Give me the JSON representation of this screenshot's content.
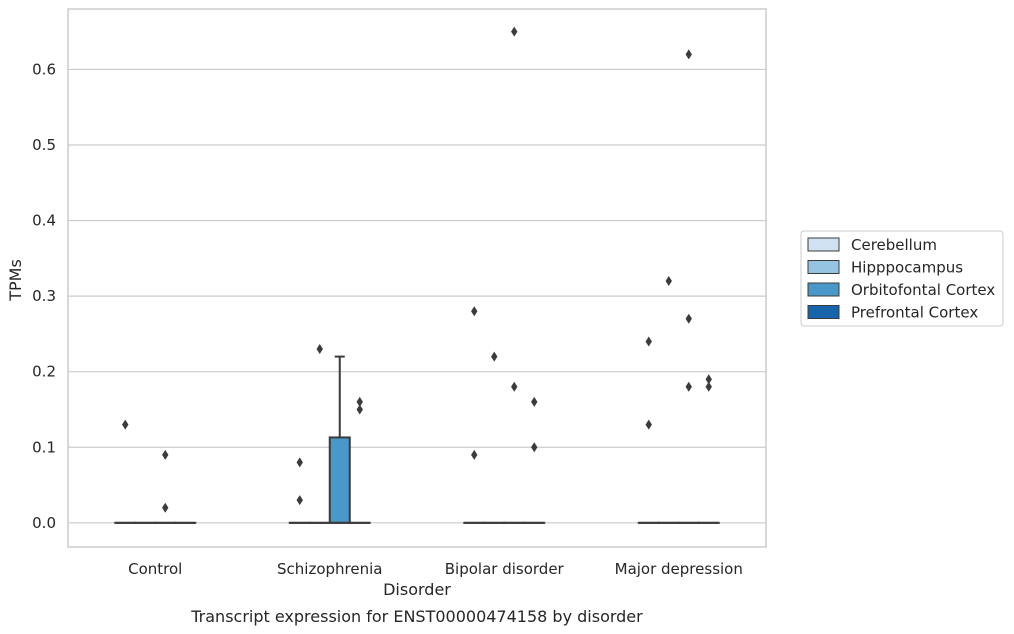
{
  "chart_data": {
    "type": "box",
    "caption": "Transcript expression for ENST00000474158 by disorder",
    "xlabel": "Disorder",
    "ylabel": "TPMs",
    "categories": [
      "Control",
      "Schizophrenia",
      "Bipolar disorder",
      "Major depression"
    ],
    "ylim": [
      -0.032,
      0.68
    ],
    "yticks": [
      0.0,
      0.1,
      0.2,
      0.3,
      0.4,
      0.5,
      0.6
    ],
    "ytick_labels": [
      "0.0",
      "0.1",
      "0.2",
      "0.3",
      "0.4",
      "0.5",
      "0.6"
    ],
    "grid": true,
    "legend_position": "right",
    "series": [
      {
        "name": "Cerebellum",
        "color": "#d0e1f2"
      },
      {
        "name": "Hipppocampus",
        "color": "#94c4df"
      },
      {
        "name": "Orbitofontal Cortex",
        "color": "#4a98c9"
      },
      {
        "name": "Prefrontal Cortex",
        "color": "#1764ab"
      }
    ],
    "boxes": [
      {
        "category": 0,
        "series": 0,
        "q1": 0,
        "median": 0,
        "q3": 0,
        "whislo": 0,
        "whishi": 0,
        "fliers": [
          0.13
        ]
      },
      {
        "category": 0,
        "series": 1,
        "q1": 0,
        "median": 0,
        "q3": 0,
        "whislo": 0,
        "whishi": 0,
        "fliers": []
      },
      {
        "category": 0,
        "series": 2,
        "q1": 0,
        "median": 0,
        "q3": 0,
        "whislo": 0,
        "whishi": 0,
        "fliers": [
          0.09,
          0.02
        ]
      },
      {
        "category": 0,
        "series": 3,
        "q1": 0,
        "median": 0,
        "q3": 0,
        "whislo": 0,
        "whishi": 0,
        "fliers": []
      },
      {
        "category": 1,
        "series": 0,
        "q1": 0,
        "median": 0,
        "q3": 0,
        "whislo": 0,
        "whishi": 0,
        "fliers": [
          0.08,
          0.03
        ]
      },
      {
        "category": 1,
        "series": 1,
        "q1": 0,
        "median": 0,
        "q3": 0,
        "whislo": 0,
        "whishi": 0,
        "fliers": [
          0.23
        ]
      },
      {
        "category": 1,
        "series": 2,
        "q1": 0,
        "median": 0,
        "q3": 0.113,
        "whislo": 0,
        "whishi": 0.22,
        "fliers": []
      },
      {
        "category": 1,
        "series": 3,
        "q1": 0,
        "median": 0,
        "q3": 0,
        "whislo": 0,
        "whishi": 0,
        "fliers": [
          0.16,
          0.15
        ]
      },
      {
        "category": 2,
        "series": 0,
        "q1": 0,
        "median": 0,
        "q3": 0,
        "whislo": 0,
        "whishi": 0,
        "fliers": [
          0.28,
          0.09
        ]
      },
      {
        "category": 2,
        "series": 1,
        "q1": 0,
        "median": 0,
        "q3": 0,
        "whislo": 0,
        "whishi": 0,
        "fliers": [
          0.22
        ]
      },
      {
        "category": 2,
        "series": 2,
        "q1": 0,
        "median": 0,
        "q3": 0,
        "whislo": 0,
        "whishi": 0,
        "fliers": [
          0.65,
          0.18
        ]
      },
      {
        "category": 2,
        "series": 3,
        "q1": 0,
        "median": 0,
        "q3": 0,
        "whislo": 0,
        "whishi": 0,
        "fliers": [
          0.16,
          0.1
        ]
      },
      {
        "category": 3,
        "series": 0,
        "q1": 0,
        "median": 0,
        "q3": 0,
        "whislo": 0,
        "whishi": 0,
        "fliers": [
          0.24,
          0.13
        ]
      },
      {
        "category": 3,
        "series": 1,
        "q1": 0,
        "median": 0,
        "q3": 0,
        "whislo": 0,
        "whishi": 0,
        "fliers": [
          0.32
        ]
      },
      {
        "category": 3,
        "series": 2,
        "q1": 0,
        "median": 0,
        "q3": 0,
        "whislo": 0,
        "whishi": 0,
        "fliers": [
          0.62,
          0.27,
          0.18
        ]
      },
      {
        "category": 3,
        "series": 3,
        "q1": 0,
        "median": 0,
        "q3": 0,
        "whislo": 0,
        "whishi": 0,
        "fliers": [
          0.19,
          0.18
        ]
      }
    ]
  }
}
